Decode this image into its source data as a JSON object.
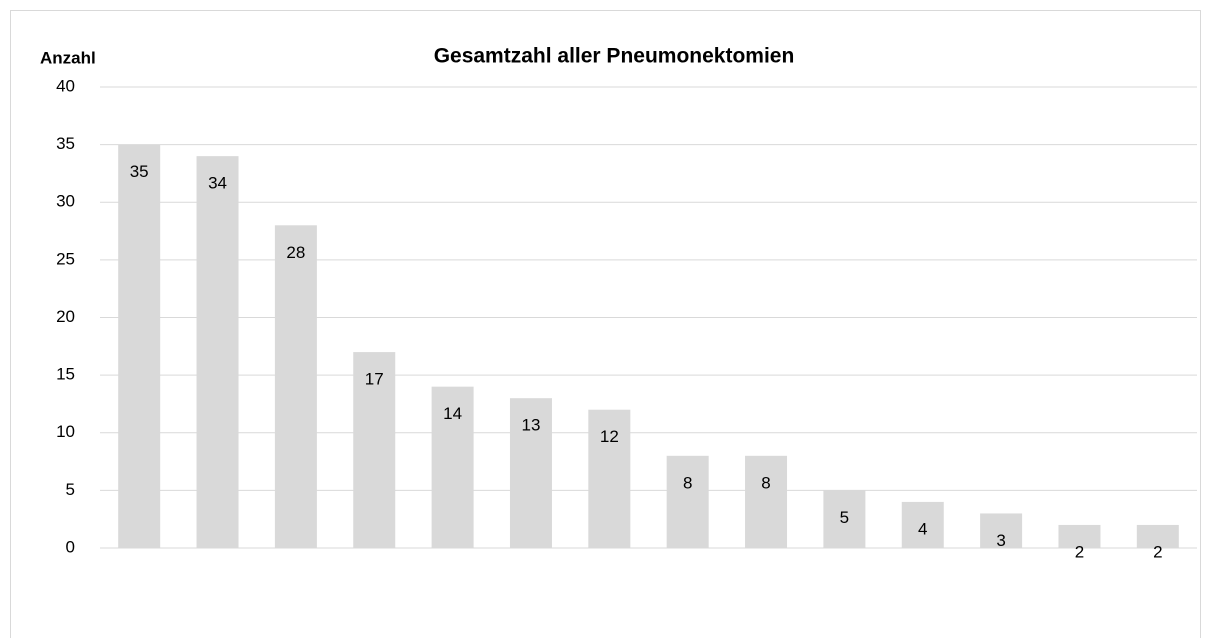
{
  "chart_data": {
    "type": "bar",
    "title": "Gesamtzahl aller Pneumonektomien",
    "y_label": "Anzahl",
    "categories": [
      null,
      null,
      null,
      null,
      null,
      null,
      null,
      null,
      null,
      null,
      null,
      null,
      null,
      null
    ],
    "values": [
      35,
      34,
      28,
      17,
      14,
      13,
      12,
      8,
      8,
      5,
      4,
      3,
      2,
      2
    ],
    "color": "#d9d9d9",
    "ylim": [
      0,
      40
    ],
    "yticks": [
      0,
      5,
      10,
      15,
      20,
      25,
      30,
      35,
      40
    ],
    "grid": true
  }
}
